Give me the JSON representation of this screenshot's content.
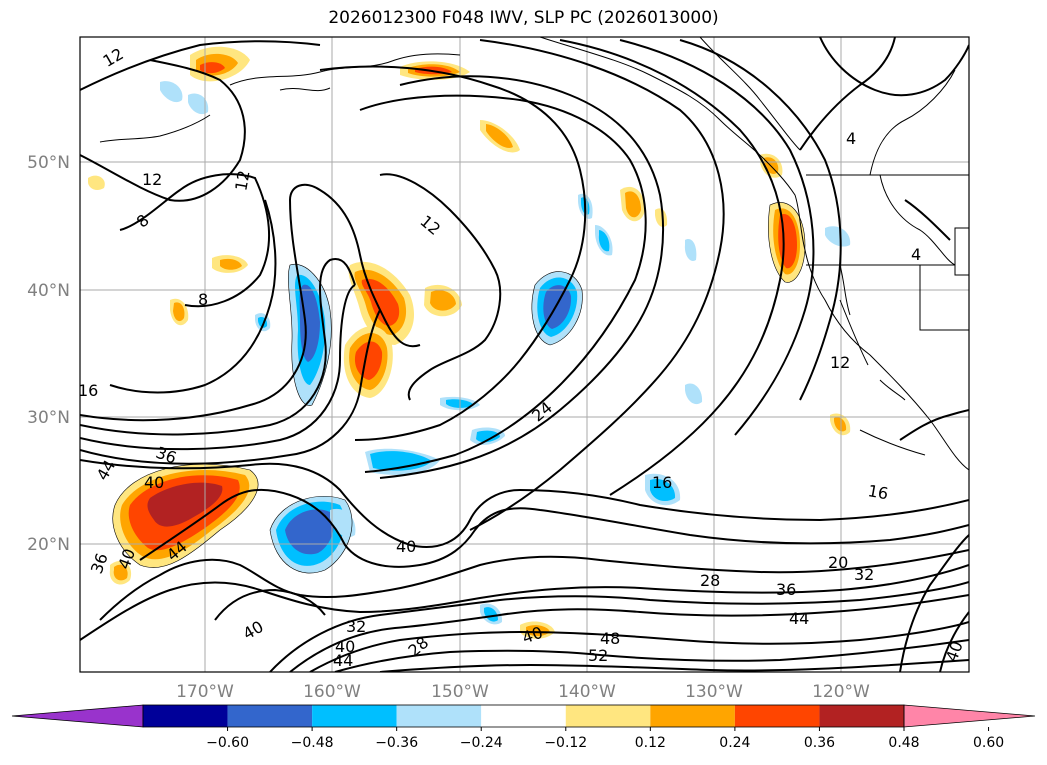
{
  "title": "2026012300 F048 IWV, SLP PC (2026013000)",
  "map": {
    "lat_labels": [
      "50°N",
      "40°N",
      "30°N",
      "20°N"
    ],
    "lon_labels": [
      "170°W",
      "160°W",
      "150°W",
      "140°W",
      "130°W",
      "120°W"
    ],
    "contour_labels": [
      "12",
      "12",
      "12",
      "8",
      "12",
      "8",
      "4",
      "4",
      "16",
      "36",
      "40",
      "44",
      "44",
      "40",
      "36",
      "40",
      "24",
      "16",
      "16",
      "20",
      "32",
      "28",
      "36",
      "44",
      "40",
      "32",
      "28",
      "40",
      "44",
      "40",
      "48",
      "52",
      "12",
      "40"
    ],
    "grid": true
  },
  "colorbar": {
    "colors": [
      "#9933cc",
      "#000099",
      "#3366cc",
      "#00bfff",
      "#afe1fa",
      "#ffffff",
      "#ffe680",
      "#ffa500",
      "#ff4500",
      "#b22222",
      "#ff85a8"
    ],
    "ticks": [
      "−0.60",
      "−0.48",
      "−0.36",
      "−0.24",
      "−0.12",
      "0.12",
      "0.24",
      "0.36",
      "0.48",
      "0.60"
    ],
    "extend": "both"
  },
  "colors": {
    "neg_strong": "#3366cc",
    "neg_med": "#00bfff",
    "neg_light": "#afe1fa",
    "pos_light": "#ffe680",
    "pos_med": "#ffa500",
    "pos_strong": "#ff4500",
    "pos_max": "#b22222",
    "contour": "#000000",
    "grid": "#aaaaaa"
  }
}
